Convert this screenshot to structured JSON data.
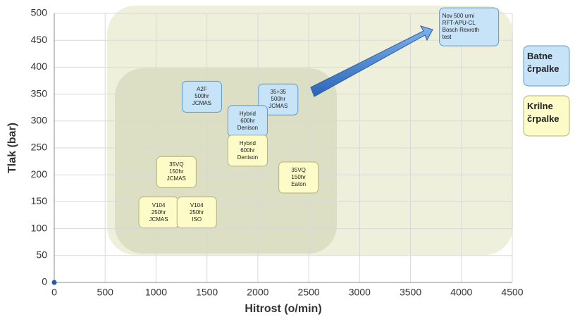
{
  "chart_data": {
    "type": "scatter",
    "x_label": "Hitrost (o/min)",
    "y_label": "Tlak (bar)",
    "xlim": [
      0,
      4500
    ],
    "xticks": [
      0,
      500,
      1000,
      1500,
      2000,
      2500,
      3000,
      3500,
      4000,
      4500
    ],
    "ylim": [
      0,
      500
    ],
    "yticks": [
      0,
      50,
      100,
      150,
      200,
      250,
      300,
      350,
      400,
      450,
      500
    ],
    "grid": true,
    "series": [
      {
        "color": "#1f5fa8",
        "x": [
          0
        ],
        "values": [
          0
        ]
      }
    ],
    "legend": [
      {
        "name": "Batne črpalke",
        "color": "#c6e3f7"
      },
      {
        "name": "Krilne črpalke",
        "color": "#fdfbc8"
      }
    ],
    "annotations": [
      {
        "text": [
          "A2F",
          "500hr",
          "JCMAS"
        ],
        "x": 1450,
        "y": 345,
        "color": "#c6e3f7"
      },
      {
        "text": [
          "35+35",
          "500hr",
          "JCMAS"
        ],
        "x": 2200,
        "y": 340,
        "color": "#c6e3f7"
      },
      {
        "text": [
          "Hybrid",
          "600hr",
          "Denison"
        ],
        "x": 1900,
        "y": 300,
        "color": "#c6e3f7"
      },
      {
        "text": [
          "Hybrid",
          "600hr",
          "Denison"
        ],
        "x": 1900,
        "y": 245,
        "color": "#fdfbc8"
      },
      {
        "text": [
          "35VQ",
          "150hr",
          "JCMAS"
        ],
        "x": 1200,
        "y": 205,
        "color": "#fdfbc8"
      },
      {
        "text": [
          "35VQ",
          "150hr",
          "Eaton"
        ],
        "x": 2400,
        "y": 195,
        "color": "#fdfbc8"
      },
      {
        "text": [
          "V104",
          "250hr",
          "JCMAS"
        ],
        "x": 1025,
        "y": 130,
        "color": "#fdfbc8"
      },
      {
        "text": [
          "V104",
          "250hr",
          "ISO"
        ],
        "x": 1400,
        "y": 130,
        "color": "#fdfbc8"
      },
      {
        "text": [
          "Nov 500 urni",
          "RFT-APU-CL",
          "Bosch Rexroth",
          "test"
        ],
        "x": 4075,
        "y": 475,
        "color": "#c6e3f7"
      }
    ]
  }
}
